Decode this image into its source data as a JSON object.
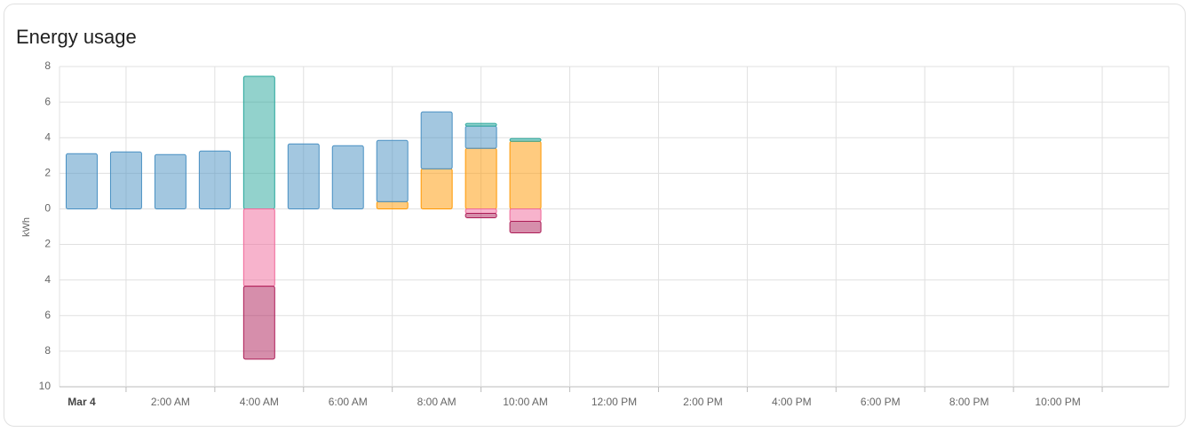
{
  "chart_data": {
    "type": "bar",
    "title": "Energy usage",
    "y_label": "kWh",
    "categories": [
      "Mar 4",
      null,
      "2:00 AM",
      null,
      "4:00 AM",
      null,
      "6:00 AM",
      null,
      "8:00 AM",
      null,
      "10:00 AM",
      null,
      "12:00 PM",
      null,
      "2:00 PM",
      null,
      "4:00 PM",
      null,
      "6:00 PM",
      null,
      "8:00 PM",
      null,
      "10:00 PM",
      null
    ],
    "series": [
      {
        "color": "#ff9800",
        "values": [
          null,
          null,
          null,
          null,
          null,
          null,
          null,
          0.4,
          2.25,
          3.4,
          3.8,
          null,
          null,
          null,
          null,
          null,
          null,
          null,
          null,
          null,
          null,
          null,
          null,
          null
        ]
      },
      {
        "color": "#488fc2",
        "values": [
          3.1,
          3.2,
          3.05,
          3.25,
          null,
          3.65,
          3.55,
          3.45,
          3.2,
          1.25,
          null,
          null,
          null,
          null,
          null,
          null,
          null,
          null,
          null,
          null,
          null,
          null,
          null,
          null
        ]
      },
      {
        "color": "#26a69a",
        "values": [
          null,
          null,
          null,
          null,
          7.45,
          null,
          null,
          null,
          null,
          0.15,
          0.15,
          null,
          null,
          null,
          null,
          null,
          null,
          null,
          null,
          null,
          null,
          null,
          null,
          null
        ]
      },
      {
        "color": "#f06799",
        "values": [
          null,
          null,
          null,
          null,
          -4.35,
          null,
          null,
          null,
          null,
          -0.25,
          -0.7,
          null,
          null,
          null,
          null,
          null,
          null,
          null,
          null,
          null,
          null,
          null,
          null,
          null
        ]
      },
      {
        "color": "#ad1d57",
        "values": [
          null,
          null,
          null,
          null,
          -4.1,
          null,
          null,
          null,
          null,
          -0.25,
          -0.65,
          null,
          null,
          null,
          null,
          null,
          null,
          null,
          null,
          null,
          null,
          null,
          null,
          null
        ]
      }
    ],
    "ylim": [
      -10,
      8
    ],
    "yticks": [
      8,
      6,
      4,
      2,
      0,
      {
        "value": -2,
        "label": "2"
      },
      {
        "value": -4,
        "label": "4"
      },
      {
        "value": -6,
        "label": "6"
      },
      {
        "value": -8,
        "label": "8"
      },
      {
        "value": -10,
        "label": "10"
      }
    ],
    "grid": true
  }
}
